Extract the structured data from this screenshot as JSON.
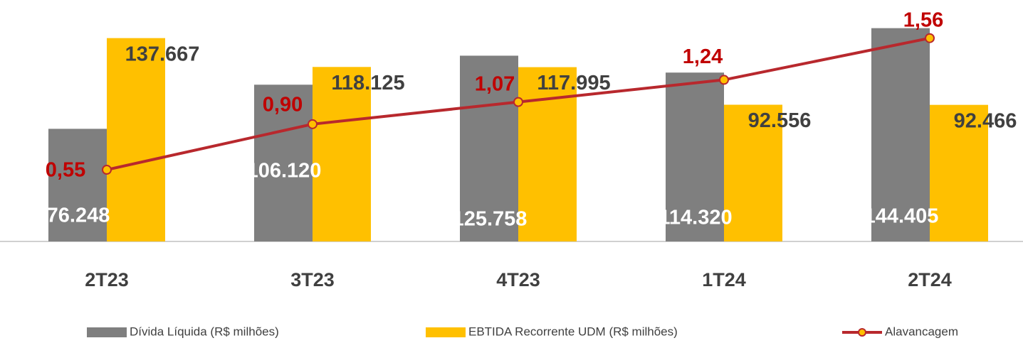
{
  "chart_data": {
    "type": "bar",
    "categories": [
      "2T23",
      "3T23",
      "4T23",
      "1T24",
      "2T24"
    ],
    "series": [
      {
        "name": "Dívida Líquida (R$ milhões)",
        "color": "#7f7f7f",
        "values": [
          76248,
          106120,
          125758,
          114320,
          144405
        ],
        "value_labels": [
          "76.248",
          "106.120",
          "125.758",
          "114.320",
          "144.405"
        ]
      },
      {
        "name": "EBTIDA Recorrente UDM (R$ milhões)",
        "color": "#ffc000",
        "values": [
          137667,
          118125,
          117995,
          92556,
          92466
        ],
        "value_labels": [
          "137.667",
          "118.125",
          "117.995",
          "92.556",
          "92.466"
        ]
      },
      {
        "name": "Alavancagem",
        "type": "line",
        "axis": "y2",
        "color": "#b8282d",
        "marker_color": "#ffc000",
        "values": [
          0.55,
          0.9,
          1.07,
          1.24,
          1.56
        ],
        "value_labels": [
          "0,55",
          "0,90",
          "1,07",
          "1,24",
          "1,56"
        ]
      }
    ],
    "ylim": [
      0,
      150000
    ],
    "y2lim": [
      0,
      1.7
    ],
    "legend": "bottom"
  }
}
